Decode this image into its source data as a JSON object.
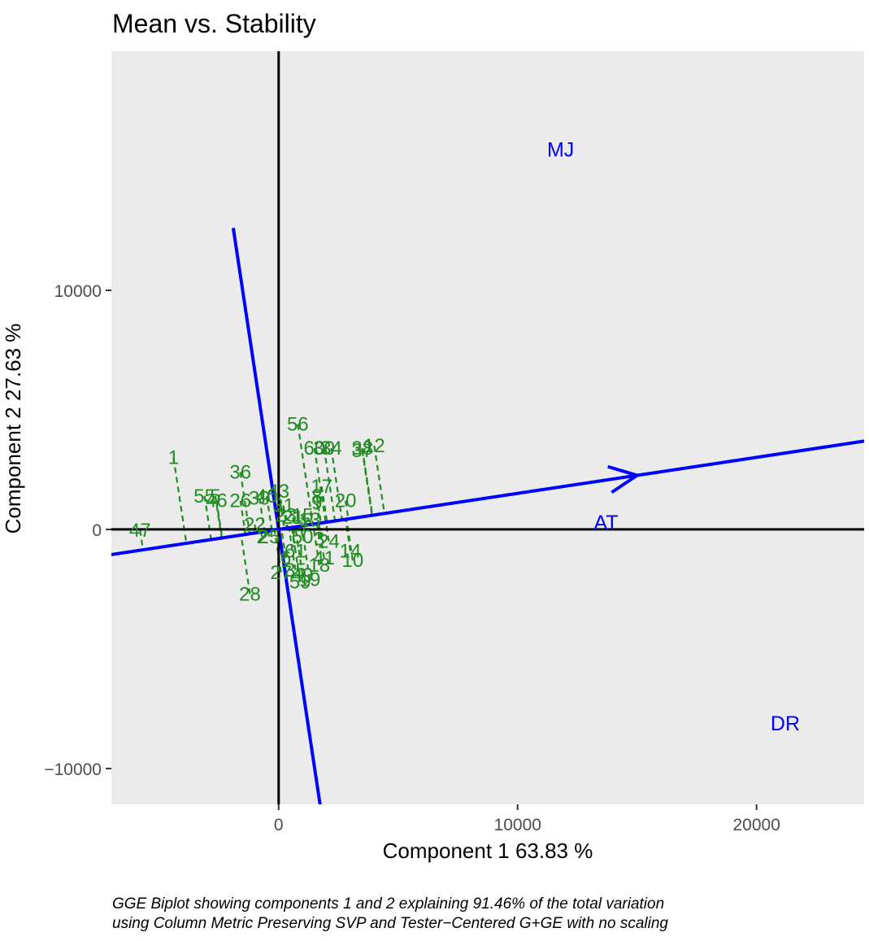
{
  "chart_data": {
    "type": "scatter",
    "title": "Mean vs. Stability",
    "xlabel": "Component 1 63.83 %",
    "ylabel": "Component 2 27.63 %",
    "xlim": [
      -7000,
      24500
    ],
    "ylim": [
      -11500,
      20000
    ],
    "xticks": [
      0,
      10000,
      20000
    ],
    "xtick_labels": [
      "0",
      "10000",
      "20000"
    ],
    "yticks": [
      -10000,
      0,
      10000
    ],
    "ytick_labels": [
      "−10000",
      "0",
      "10000"
    ],
    "caption_lines": [
      "GGE Biplot showing components 1 and 2 explaining 91.46% of the total variation",
      "using Column Metric Preserving SVP and Tester−Centered G+GE with no scaling"
    ],
    "background": "#ebebeb",
    "colors": {
      "environments": "#0000ff",
      "genotypes": "#228b22",
      "axes": "#000000"
    },
    "ate_axis": {
      "slope": 0.1507,
      "arrow_end": [
        15000,
        2260
      ]
    },
    "environments": [
      {
        "name": "MJ",
        "x": 11800,
        "y": 15900
      },
      {
        "name": "AT",
        "x": 13700,
        "y": 300
      },
      {
        "name": "DR",
        "x": 21200,
        "y": -8100
      }
    ],
    "genotypes": [
      {
        "name": "1",
        "x": -4400,
        "y": 3000
      },
      {
        "name": "47",
        "x": -5800,
        "y": -30
      },
      {
        "name": "55",
        "x": -3100,
        "y": 1400
      },
      {
        "name": "5",
        "x": -2650,
        "y": 1400
      },
      {
        "name": "46",
        "x": -2600,
        "y": 1200
      },
      {
        "name": "26",
        "x": -1600,
        "y": 1200
      },
      {
        "name": "36",
        "x": -1600,
        "y": 2400
      },
      {
        "name": "28",
        "x": -1200,
        "y": -2700
      },
      {
        "name": "39",
        "x": -800,
        "y": 1300
      },
      {
        "name": "40",
        "x": -500,
        "y": 1400
      },
      {
        "name": "43",
        "x": 0,
        "y": 1600
      },
      {
        "name": "31",
        "x": 200,
        "y": 1000
      },
      {
        "name": "22",
        "x": -1000,
        "y": 200
      },
      {
        "name": "2",
        "x": -700,
        "y": -300
      },
      {
        "name": "25",
        "x": -400,
        "y": -300
      },
      {
        "name": "23",
        "x": 300,
        "y": 600
      },
      {
        "name": "21",
        "x": 600,
        "y": 500
      },
      {
        "name": "15",
        "x": 1000,
        "y": 600
      },
      {
        "name": "13",
        "x": 1300,
        "y": 400
      },
      {
        "name": "7",
        "x": 1100,
        "y": 200
      },
      {
        "name": "56",
        "x": 800,
        "y": 4400
      },
      {
        "name": "60",
        "x": 1500,
        "y": 3400
      },
      {
        "name": "30",
        "x": 1900,
        "y": 3400
      },
      {
        "name": "34",
        "x": 2200,
        "y": 3400
      },
      {
        "name": "38",
        "x": 3500,
        "y": 3400
      },
      {
        "name": "12",
        "x": 4000,
        "y": 3500
      },
      {
        "name": "37",
        "x": 3500,
        "y": 3300
      },
      {
        "name": "17",
        "x": 1800,
        "y": 1800
      },
      {
        "name": "8",
        "x": 1600,
        "y": 1400
      },
      {
        "name": "9",
        "x": 1600,
        "y": 1100
      },
      {
        "name": "20",
        "x": 2800,
        "y": 1200
      },
      {
        "name": "50",
        "x": 1000,
        "y": -300
      },
      {
        "name": "3",
        "x": 1700,
        "y": -400
      },
      {
        "name": "24",
        "x": 2100,
        "y": -500
      },
      {
        "name": "14",
        "x": 3000,
        "y": -900
      },
      {
        "name": "10",
        "x": 3100,
        "y": -1300
      },
      {
        "name": "41",
        "x": 1900,
        "y": -1200
      },
      {
        "name": "18",
        "x": 1700,
        "y": -1500
      },
      {
        "name": "49",
        "x": 1000,
        "y": -1900
      },
      {
        "name": "19",
        "x": 1300,
        "y": -2100
      },
      {
        "name": "59",
        "x": 900,
        "y": -2200
      },
      {
        "name": "61",
        "x": 700,
        "y": -900
      },
      {
        "name": "6",
        "x": 300,
        "y": -1200
      },
      {
        "name": "27",
        "x": 100,
        "y": -1800
      },
      {
        "name": "35",
        "x": 700,
        "y": -1700
      }
    ]
  }
}
